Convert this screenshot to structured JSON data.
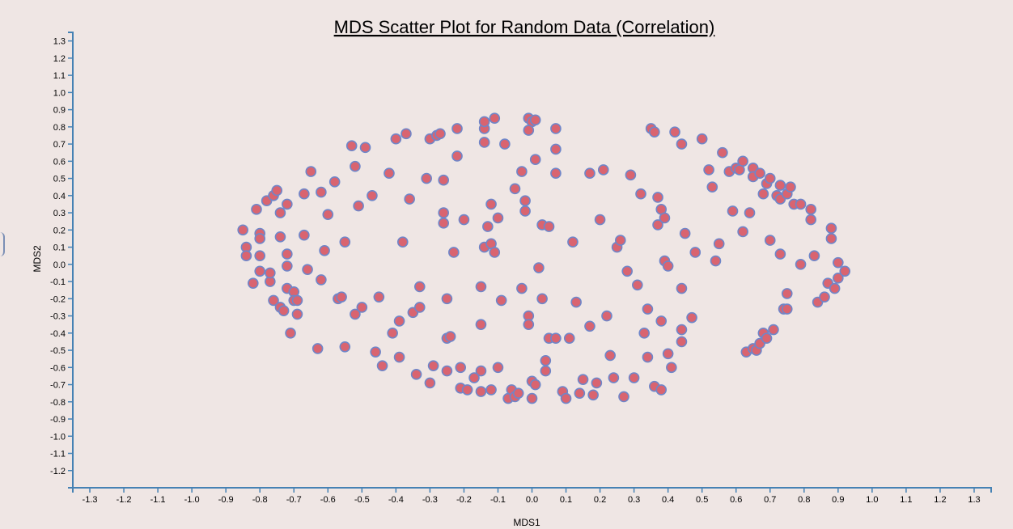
{
  "chart_data": {
    "type": "scatter",
    "title": "MDS Scatter Plot for Random Data (Correlation)",
    "xlabel": "MDS1",
    "ylabel": "MDS2",
    "xlim": [
      -1.35,
      1.35
    ],
    "ylim": [
      -1.3,
      1.35
    ],
    "xticks": [
      "-1.3",
      "-1.2",
      "-1.1",
      "-1.0",
      "-0.9",
      "-0.8",
      "-0.7",
      "-0.6",
      "-0.5",
      "-0.4",
      "-0.3",
      "-0.2",
      "-0.1",
      "0.0",
      "0.1",
      "0.2",
      "0.3",
      "0.4",
      "0.5",
      "0.6",
      "0.7",
      "0.8",
      "0.9",
      "1.0",
      "1.1",
      "1.2",
      "1.3"
    ],
    "yticks": [
      "-1.2",
      "-1.1",
      "-1.0",
      "-0.9",
      "-0.8",
      "-0.7",
      "-0.6",
      "-0.5",
      "-0.4",
      "-0.3",
      "-0.2",
      "-0.1",
      "0.0",
      "0.1",
      "0.2",
      "0.3",
      "0.4",
      "0.5",
      "0.6",
      "0.7",
      "0.8",
      "0.9",
      "1.0",
      "1.1",
      "1.2",
      "1.3"
    ],
    "grid": false,
    "colors": {
      "point_fill": "#d96470",
      "point_stroke": "#6f86c9",
      "axis": "#4682b4"
    },
    "points": [
      [
        -0.85,
        0.2
      ],
      [
        -0.84,
        0.1
      ],
      [
        -0.84,
        0.05
      ],
      [
        -0.82,
        -0.11
      ],
      [
        -0.81,
        0.32
      ],
      [
        -0.8,
        0.18
      ],
      [
        -0.8,
        0.15
      ],
      [
        -0.8,
        0.05
      ],
      [
        -0.8,
        -0.04
      ],
      [
        -0.78,
        0.37
      ],
      [
        -0.77,
        -0.1
      ],
      [
        -0.77,
        -0.05
      ],
      [
        -0.76,
        0.4
      ],
      [
        -0.76,
        -0.21
      ],
      [
        -0.75,
        0.43
      ],
      [
        -0.74,
        0.3
      ],
      [
        -0.74,
        -0.25
      ],
      [
        -0.74,
        0.16
      ],
      [
        -0.73,
        -0.27
      ],
      [
        -0.72,
        -0.14
      ],
      [
        -0.72,
        0.35
      ],
      [
        -0.72,
        0.06
      ],
      [
        -0.72,
        -0.01
      ],
      [
        -0.71,
        -0.4
      ],
      [
        -0.7,
        -0.16
      ],
      [
        -0.7,
        -0.21
      ],
      [
        -0.69,
        -0.21
      ],
      [
        -0.69,
        -0.29
      ],
      [
        -0.67,
        0.41
      ],
      [
        -0.67,
        0.17
      ],
      [
        -0.66,
        -0.03
      ],
      [
        -0.65,
        0.54
      ],
      [
        -0.63,
        -0.49
      ],
      [
        -0.62,
        0.42
      ],
      [
        -0.62,
        -0.09
      ],
      [
        -0.61,
        0.08
      ],
      [
        -0.6,
        0.29
      ],
      [
        -0.58,
        0.48
      ],
      [
        -0.57,
        -0.2
      ],
      [
        -0.56,
        -0.19
      ],
      [
        -0.55,
        0.13
      ],
      [
        -0.55,
        -0.48
      ],
      [
        -0.53,
        0.69
      ],
      [
        -0.52,
        0.57
      ],
      [
        -0.52,
        -0.29
      ],
      [
        -0.51,
        0.34
      ],
      [
        -0.5,
        -0.25
      ],
      [
        -0.49,
        0.68
      ],
      [
        -0.47,
        0.4
      ],
      [
        -0.46,
        -0.51
      ],
      [
        -0.45,
        -0.19
      ],
      [
        -0.44,
        -0.59
      ],
      [
        -0.42,
        0.53
      ],
      [
        -0.41,
        -0.4
      ],
      [
        -0.4,
        0.73
      ],
      [
        -0.39,
        -0.54
      ],
      [
        -0.39,
        -0.33
      ],
      [
        -0.38,
        0.13
      ],
      [
        -0.37,
        0.76
      ],
      [
        -0.36,
        0.38
      ],
      [
        -0.35,
        -0.28
      ],
      [
        -0.34,
        -0.64
      ],
      [
        -0.33,
        -0.13
      ],
      [
        -0.33,
        -0.25
      ],
      [
        -0.31,
        0.5
      ],
      [
        -0.3,
        0.73
      ],
      [
        -0.3,
        -0.69
      ],
      [
        -0.29,
        -0.59
      ],
      [
        -0.28,
        0.75
      ],
      [
        -0.27,
        0.76
      ],
      [
        -0.26,
        0.49
      ],
      [
        -0.26,
        0.3
      ],
      [
        -0.26,
        0.24
      ],
      [
        -0.25,
        -0.43
      ],
      [
        -0.25,
        -0.62
      ],
      [
        -0.25,
        -0.2
      ],
      [
        -0.24,
        -0.42
      ],
      [
        -0.23,
        0.07
      ],
      [
        -0.22,
        0.63
      ],
      [
        -0.22,
        0.79
      ],
      [
        -0.21,
        -0.6
      ],
      [
        -0.21,
        -0.72
      ],
      [
        -0.2,
        0.26
      ],
      [
        -0.19,
        -0.73
      ],
      [
        -0.17,
        -0.66
      ],
      [
        -0.15,
        -0.13
      ],
      [
        -0.15,
        -0.35
      ],
      [
        -0.15,
        -0.62
      ],
      [
        -0.15,
        -0.74
      ],
      [
        -0.14,
        0.1
      ],
      [
        -0.14,
        0.79
      ],
      [
        -0.14,
        0.83
      ],
      [
        -0.14,
        0.71
      ],
      [
        -0.13,
        0.22
      ],
      [
        -0.12,
        -0.73
      ],
      [
        -0.12,
        0.12
      ],
      [
        -0.12,
        0.35
      ],
      [
        -0.11,
        0.07
      ],
      [
        -0.11,
        0.85
      ],
      [
        -0.1,
        0.27
      ],
      [
        -0.1,
        -0.6
      ],
      [
        -0.09,
        -0.21
      ],
      [
        -0.08,
        0.7
      ],
      [
        -0.07,
        -0.78
      ],
      [
        -0.06,
        -0.73
      ],
      [
        -0.05,
        -0.77
      ],
      [
        -0.05,
        0.44
      ],
      [
        -0.04,
        -0.75
      ],
      [
        -0.03,
        0.54
      ],
      [
        -0.03,
        -0.14
      ],
      [
        -0.02,
        0.37
      ],
      [
        -0.02,
        0.31
      ],
      [
        -0.01,
        0.85
      ],
      [
        -0.01,
        -0.3
      ],
      [
        -0.01,
        -0.35
      ],
      [
        0.0,
        -0.78
      ],
      [
        0.0,
        0.83
      ],
      [
        -0.01,
        0.78
      ],
      [
        0.0,
        -0.68
      ],
      [
        0.01,
        0.61
      ],
      [
        0.01,
        -0.7
      ],
      [
        0.01,
        0.84
      ],
      [
        0.02,
        -0.02
      ],
      [
        0.03,
        0.23
      ],
      [
        0.03,
        -0.2
      ],
      [
        0.04,
        -0.56
      ],
      [
        0.04,
        -0.62
      ],
      [
        0.05,
        0.22
      ],
      [
        0.05,
        -0.43
      ],
      [
        0.07,
        0.79
      ],
      [
        0.07,
        0.67
      ],
      [
        0.07,
        0.53
      ],
      [
        0.07,
        -0.43
      ],
      [
        0.09,
        -0.74
      ],
      [
        0.1,
        -0.78
      ],
      [
        0.11,
        -0.43
      ],
      [
        0.12,
        0.13
      ],
      [
        0.13,
        -0.22
      ],
      [
        0.14,
        -0.75
      ],
      [
        0.15,
        -0.67
      ],
      [
        0.17,
        0.53
      ],
      [
        0.17,
        -0.36
      ],
      [
        0.18,
        -0.76
      ],
      [
        0.19,
        -0.69
      ],
      [
        0.2,
        0.26
      ],
      [
        0.21,
        0.55
      ],
      [
        0.22,
        -0.3
      ],
      [
        0.23,
        -0.53
      ],
      [
        0.24,
        -0.66
      ],
      [
        0.25,
        0.1
      ],
      [
        0.26,
        0.14
      ],
      [
        0.27,
        -0.77
      ],
      [
        0.28,
        -0.04
      ],
      [
        0.29,
        0.52
      ],
      [
        0.3,
        -0.66
      ],
      [
        0.31,
        -0.12
      ],
      [
        0.32,
        0.41
      ],
      [
        0.33,
        -0.4
      ],
      [
        0.34,
        -0.26
      ],
      [
        0.34,
        -0.54
      ],
      [
        0.35,
        0.79
      ],
      [
        0.36,
        -0.71
      ],
      [
        0.36,
        0.77
      ],
      [
        0.37,
        0.39
      ],
      [
        0.37,
        0.23
      ],
      [
        0.38,
        0.32
      ],
      [
        0.38,
        -0.33
      ],
      [
        0.38,
        -0.73
      ],
      [
        0.39,
        0.27
      ],
      [
        0.39,
        0.02
      ],
      [
        0.4,
        -0.01
      ],
      [
        0.4,
        -0.52
      ],
      [
        0.41,
        -0.6
      ],
      [
        0.42,
        0.77
      ],
      [
        0.44,
        -0.14
      ],
      [
        0.44,
        -0.38
      ],
      [
        0.44,
        0.7
      ],
      [
        0.44,
        -0.45
      ],
      [
        0.45,
        0.18
      ],
      [
        0.47,
        -0.31
      ],
      [
        0.48,
        0.07
      ],
      [
        0.5,
        0.73
      ],
      [
        0.52,
        0.55
      ],
      [
        0.53,
        0.45
      ],
      [
        0.54,
        0.02
      ],
      [
        0.55,
        0.12
      ],
      [
        0.56,
        0.65
      ],
      [
        0.58,
        0.54
      ],
      [
        0.59,
        0.31
      ],
      [
        0.6,
        0.56
      ],
      [
        0.61,
        0.55
      ],
      [
        0.62,
        0.19
      ],
      [
        0.62,
        0.6
      ],
      [
        0.63,
        -0.51
      ],
      [
        0.64,
        0.3
      ],
      [
        0.65,
        0.56
      ],
      [
        0.65,
        -0.49
      ],
      [
        0.65,
        0.51
      ],
      [
        0.66,
        -0.5
      ],
      [
        0.67,
        0.53
      ],
      [
        0.67,
        -0.46
      ],
      [
        0.68,
        0.41
      ],
      [
        0.68,
        -0.4
      ],
      [
        0.69,
        0.47
      ],
      [
        0.69,
        -0.43
      ],
      [
        0.7,
        0.5
      ],
      [
        0.7,
        0.14
      ],
      [
        0.71,
        -0.38
      ],
      [
        0.72,
        0.4
      ],
      [
        0.73,
        0.46
      ],
      [
        0.73,
        0.06
      ],
      [
        0.73,
        0.38
      ],
      [
        0.74,
        -0.26
      ],
      [
        0.75,
        -0.17
      ],
      [
        0.75,
        -0.26
      ],
      [
        0.75,
        0.41
      ],
      [
        0.76,
        0.45
      ],
      [
        0.77,
        0.35
      ],
      [
        0.79,
        0.0
      ],
      [
        0.79,
        0.35
      ],
      [
        0.82,
        0.32
      ],
      [
        0.82,
        0.26
      ],
      [
        0.83,
        0.05
      ],
      [
        0.84,
        -0.22
      ],
      [
        0.86,
        -0.19
      ],
      [
        0.87,
        -0.11
      ],
      [
        0.88,
        0.21
      ],
      [
        0.88,
        0.15
      ],
      [
        0.89,
        -0.14
      ],
      [
        0.9,
        0.01
      ],
      [
        0.9,
        -0.08
      ],
      [
        0.92,
        -0.04
      ]
    ]
  }
}
